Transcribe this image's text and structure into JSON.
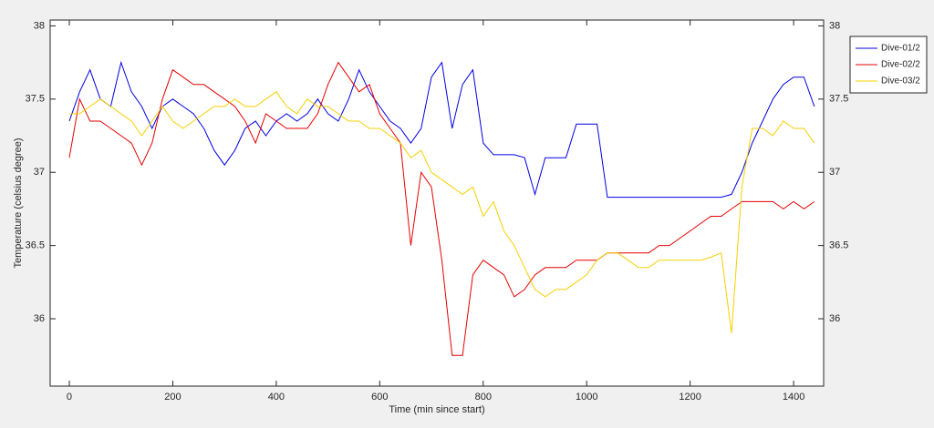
{
  "chart_data": {
    "type": "line",
    "x_label": "Time (min since start)",
    "y_label": "Temperature (celsius degree)",
    "x": [
      0,
      20,
      40,
      60,
      80,
      100,
      120,
      140,
      160,
      180,
      200,
      220,
      240,
      260,
      280,
      300,
      320,
      340,
      360,
      380,
      400,
      420,
      440,
      460,
      480,
      500,
      520,
      540,
      560,
      580,
      600,
      620,
      640,
      660,
      680,
      700,
      720,
      740,
      760,
      780,
      800,
      820,
      840,
      860,
      880,
      900,
      920,
      940,
      960,
      980,
      1000,
      1020,
      1040,
      1060,
      1080,
      1100,
      1120,
      1140,
      1160,
      1180,
      1200,
      1220,
      1240,
      1260,
      1280,
      1300,
      1320,
      1340,
      1360,
      1380,
      1400,
      1420,
      1440
    ],
    "series": [
      {
        "name": "Dive-01/2",
        "color": "#0000e6",
        "values": [
          37.35,
          37.55,
          37.7,
          37.5,
          37.45,
          37.75,
          37.55,
          37.45,
          37.3,
          37.45,
          37.5,
          37.45,
          37.4,
          37.3,
          37.15,
          37.05,
          37.15,
          37.3,
          37.35,
          37.25,
          37.35,
          37.4,
          37.35,
          37.4,
          37.5,
          37.4,
          37.35,
          37.5,
          37.7,
          37.55,
          37.45,
          37.35,
          37.3,
          37.2,
          37.3,
          37.65,
          37.75,
          37.3,
          37.6,
          37.7,
          37.2,
          37.12,
          37.12,
          37.12,
          37.1,
          36.85,
          37.1,
          37.1,
          37.1,
          37.33,
          37.33,
          37.33,
          36.83,
          36.83,
          36.83,
          36.83,
          36.83,
          36.83,
          36.83,
          36.83,
          36.83,
          36.83,
          36.83,
          36.83,
          36.85,
          37.0,
          37.2,
          37.35,
          37.5,
          37.6,
          37.65,
          37.65,
          37.45
        ]
      },
      {
        "name": "Dive-02/2",
        "color": "#e60000",
        "values": [
          37.1,
          37.5,
          37.35,
          37.35,
          37.3,
          37.25,
          37.2,
          37.05,
          37.2,
          37.5,
          37.7,
          37.65,
          37.6,
          37.6,
          37.55,
          37.5,
          37.45,
          37.35,
          37.2,
          37.4,
          37.35,
          37.3,
          37.3,
          37.3,
          37.4,
          37.6,
          37.75,
          37.65,
          37.55,
          37.6,
          37.4,
          37.3,
          37.2,
          36.5,
          37.0,
          36.9,
          36.4,
          35.75,
          35.75,
          36.3,
          36.4,
          36.35,
          36.3,
          36.15,
          36.2,
          36.3,
          36.35,
          36.35,
          36.35,
          36.4,
          36.4,
          36.4,
          36.45,
          36.45,
          36.45,
          36.45,
          36.45,
          36.5,
          36.5,
          36.55,
          36.6,
          36.65,
          36.7,
          36.7,
          36.75,
          36.8,
          36.8,
          36.8,
          36.8,
          36.75,
          36.8,
          36.75,
          36.8
        ]
      },
      {
        "name": "Dive-03/2",
        "color": "#f5d000",
        "values": [
          37.4,
          37.4,
          37.45,
          37.5,
          37.45,
          37.4,
          37.35,
          37.25,
          37.35,
          37.45,
          37.35,
          37.3,
          37.35,
          37.4,
          37.45,
          37.45,
          37.5,
          37.45,
          37.45,
          37.5,
          37.55,
          37.45,
          37.4,
          37.5,
          37.45,
          37.45,
          37.4,
          37.35,
          37.35,
          37.3,
          37.3,
          37.25,
          37.2,
          37.1,
          37.15,
          37.0,
          36.95,
          36.9,
          36.85,
          36.9,
          36.7,
          36.8,
          36.6,
          36.5,
          36.35,
          36.2,
          36.15,
          36.2,
          36.2,
          36.25,
          36.3,
          36.4,
          36.45,
          36.45,
          36.4,
          36.35,
          36.35,
          36.4,
          36.4,
          36.4,
          36.4,
          36.4,
          36.42,
          36.45,
          35.9,
          36.9,
          37.3,
          37.3,
          37.25,
          37.35,
          37.3,
          37.3,
          37.2
        ]
      }
    ],
    "xlim": [
      -37,
      1458
    ],
    "xticks": [
      0,
      200,
      400,
      600,
      800,
      1000,
      1200,
      1400
    ],
    "ylim": [
      35.54,
      38.04
    ],
    "yticks": [
      36,
      36.5,
      37,
      37.5,
      38
    ],
    "y2lim": [
      35.54,
      38.04
    ],
    "y2ticks": [
      36,
      36.5,
      37,
      37.5,
      38
    ],
    "legend": "outside-upper-right"
  }
}
